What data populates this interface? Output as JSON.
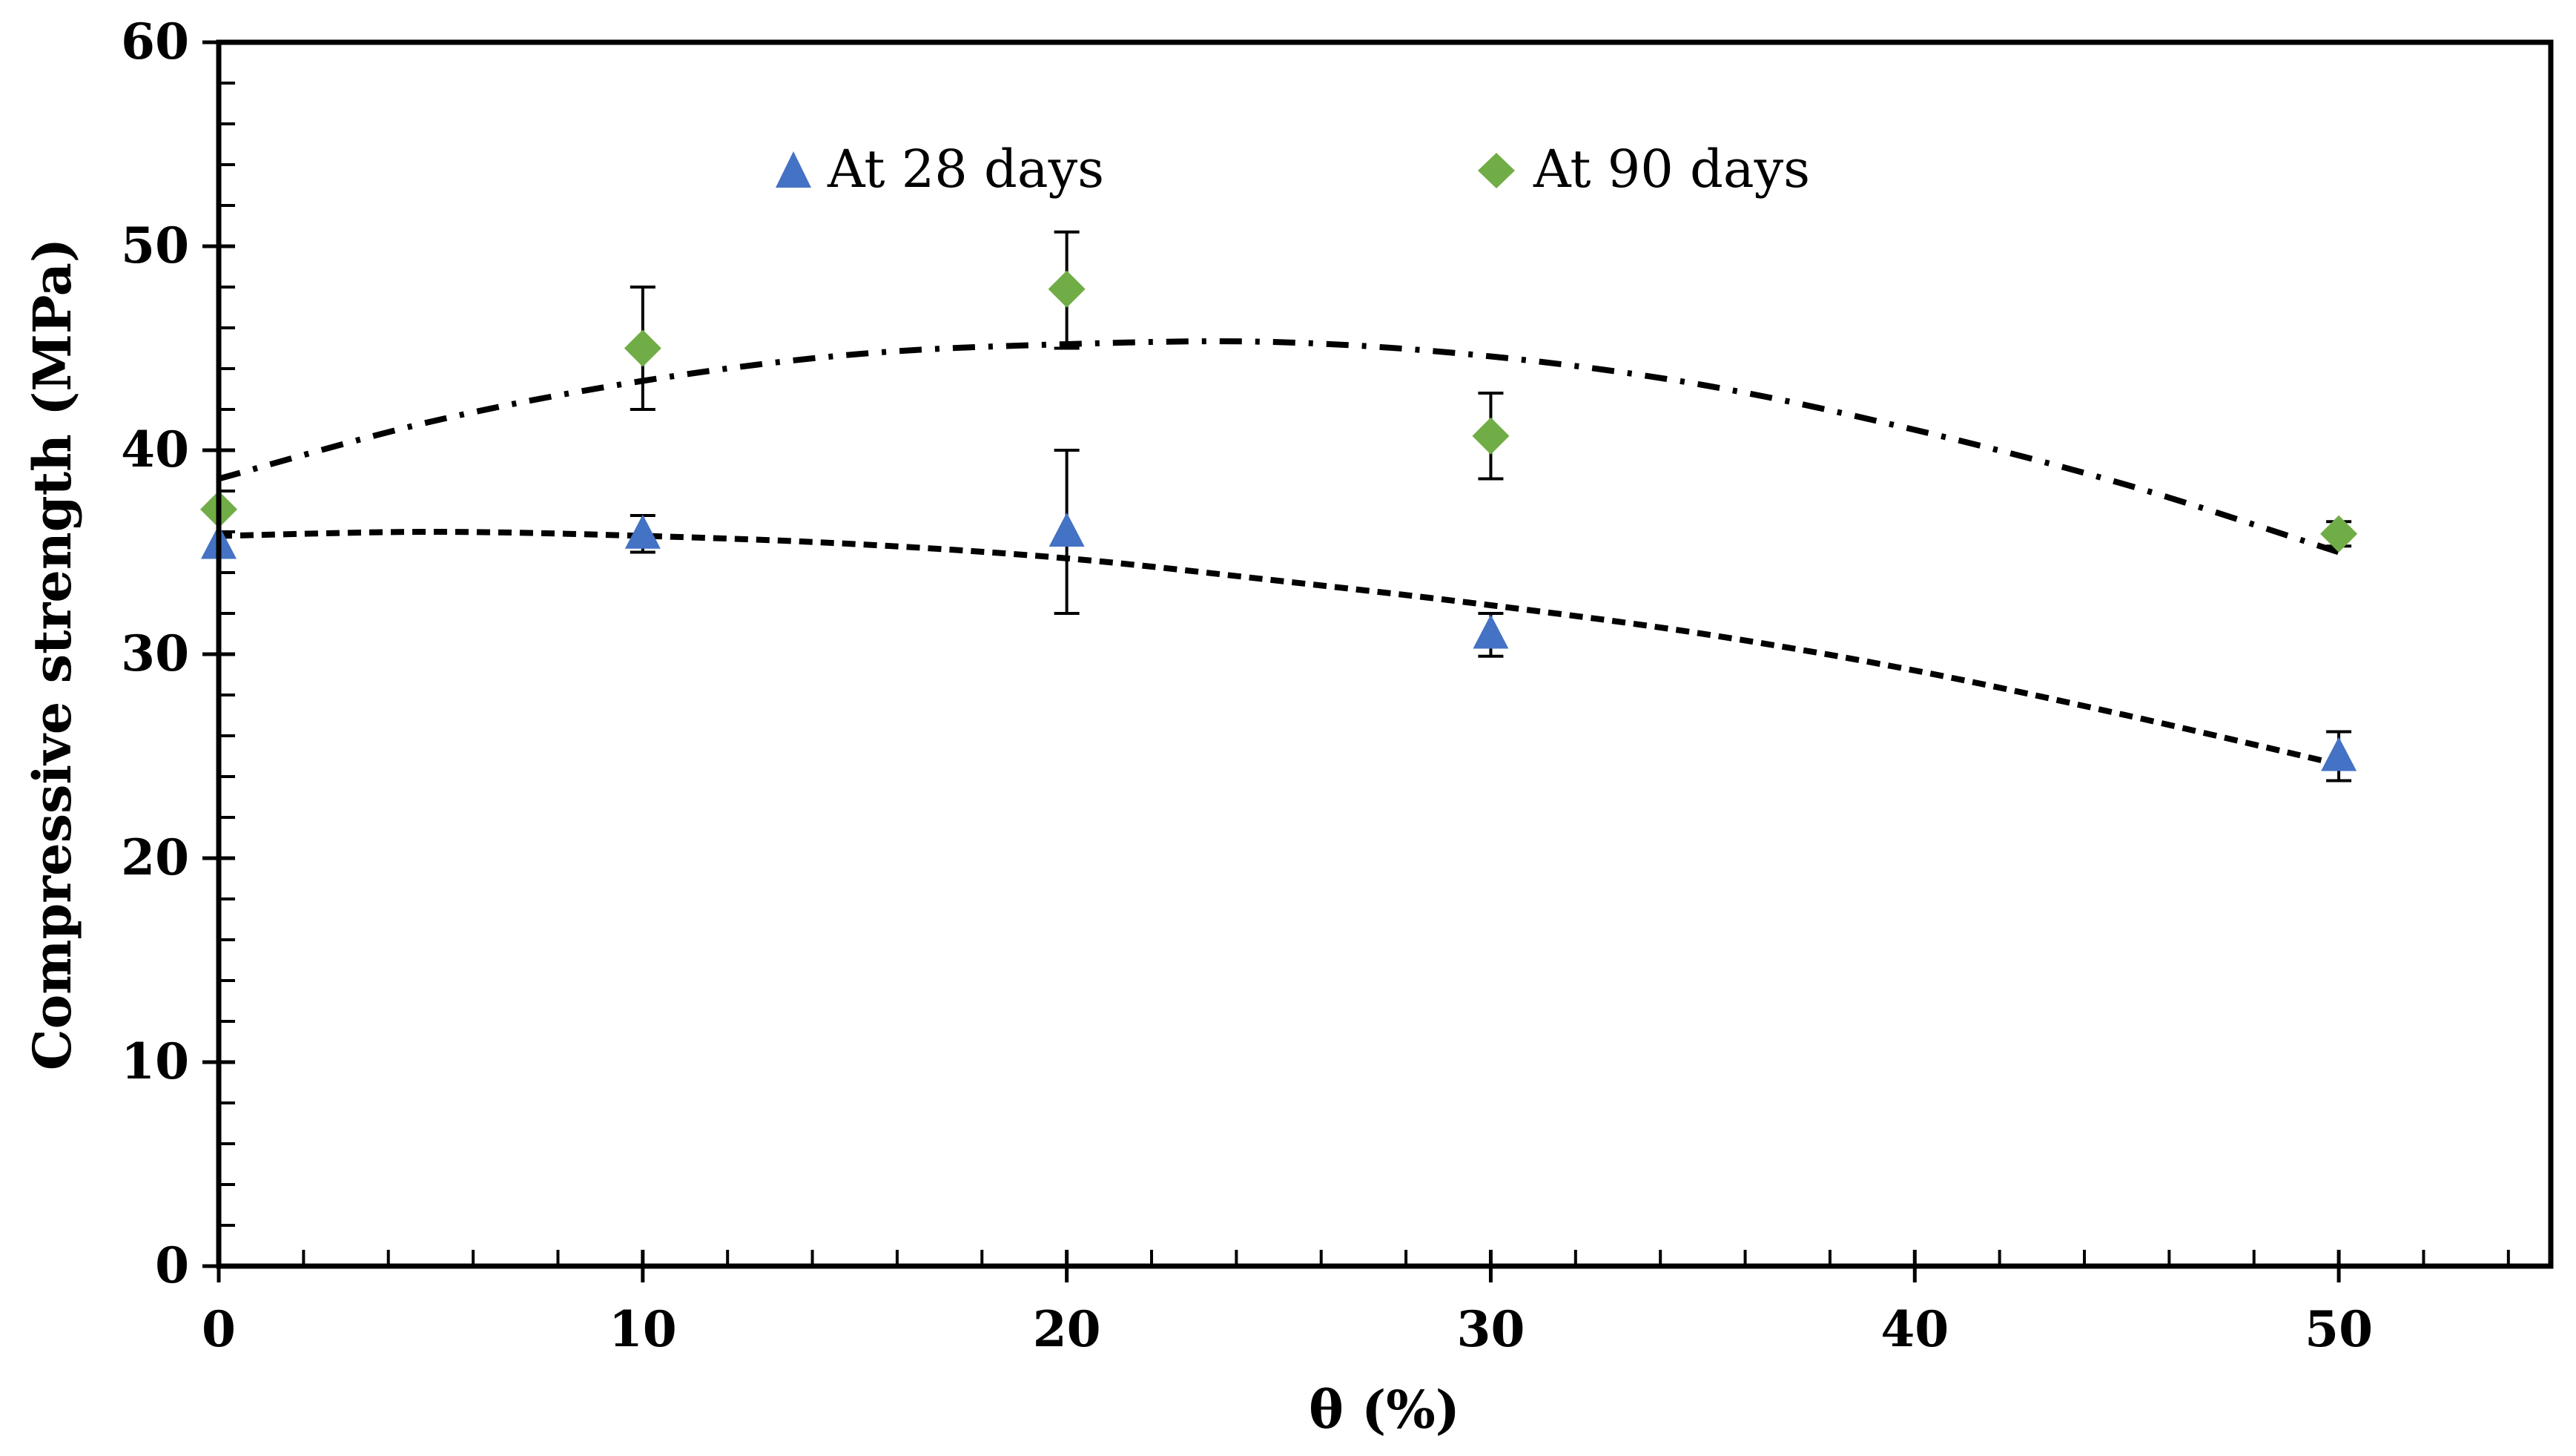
{
  "chart_data": {
    "type": "scatter",
    "title": "",
    "xlabel": "θ (%)",
    "ylabel": "Compressive strength (MPa)",
    "xlim": [
      0,
      55
    ],
    "ylim": [
      0,
      60
    ],
    "xticks": [
      0,
      10,
      20,
      30,
      40,
      50
    ],
    "yticks": [
      0,
      10,
      20,
      30,
      40,
      50,
      60
    ],
    "x_minor_step": 2,
    "y_minor_step": 2,
    "grid": false,
    "legend_position": "top-center",
    "series": [
      {
        "name": "At 28 days",
        "marker": "triangle",
        "color": "#4472C4",
        "x": [
          0,
          10,
          20,
          30,
          50
        ],
        "y": [
          35.4,
          35.9,
          36.0,
          31.0,
          25.0
        ],
        "err_low": [
          35.4,
          35.0,
          32.0,
          29.9,
          23.8
        ],
        "err_high": [
          35.4,
          36.8,
          40.0,
          32.0,
          26.2
        ],
        "trendline": {
          "style": "dashed",
          "points": [
            [
              0,
              35.8
            ],
            [
              5,
              36.0
            ],
            [
              10,
              35.8
            ],
            [
              15,
              35.4
            ],
            [
              20,
              34.7
            ],
            [
              25,
              33.6
            ],
            [
              30,
              32.4
            ],
            [
              35,
              31.0
            ],
            [
              40,
              29.2
            ],
            [
              45,
              27.0
            ],
            [
              50,
              24.6
            ]
          ]
        }
      },
      {
        "name": "At 90 days",
        "marker": "diamond",
        "color": "#70AD47",
        "x": [
          0,
          10,
          20,
          30,
          50
        ],
        "y": [
          37.1,
          45.0,
          47.9,
          40.7,
          35.9
        ],
        "err_low": [
          37.1,
          42.0,
          45.0,
          38.6,
          35.3
        ],
        "err_high": [
          37.1,
          48.0,
          50.7,
          42.8,
          36.5
        ],
        "trendline": {
          "style": "dash-dot",
          "points": [
            [
              0,
              38.6
            ],
            [
              5,
              41.4
            ],
            [
              10,
              43.4
            ],
            [
              15,
              44.7
            ],
            [
              20,
              45.2
            ],
            [
              25,
              45.3
            ],
            [
              30,
              44.6
            ],
            [
              35,
              43.2
            ],
            [
              40,
              41.0
            ],
            [
              45,
              38.3
            ],
            [
              50,
              35.0
            ]
          ]
        }
      }
    ]
  }
}
